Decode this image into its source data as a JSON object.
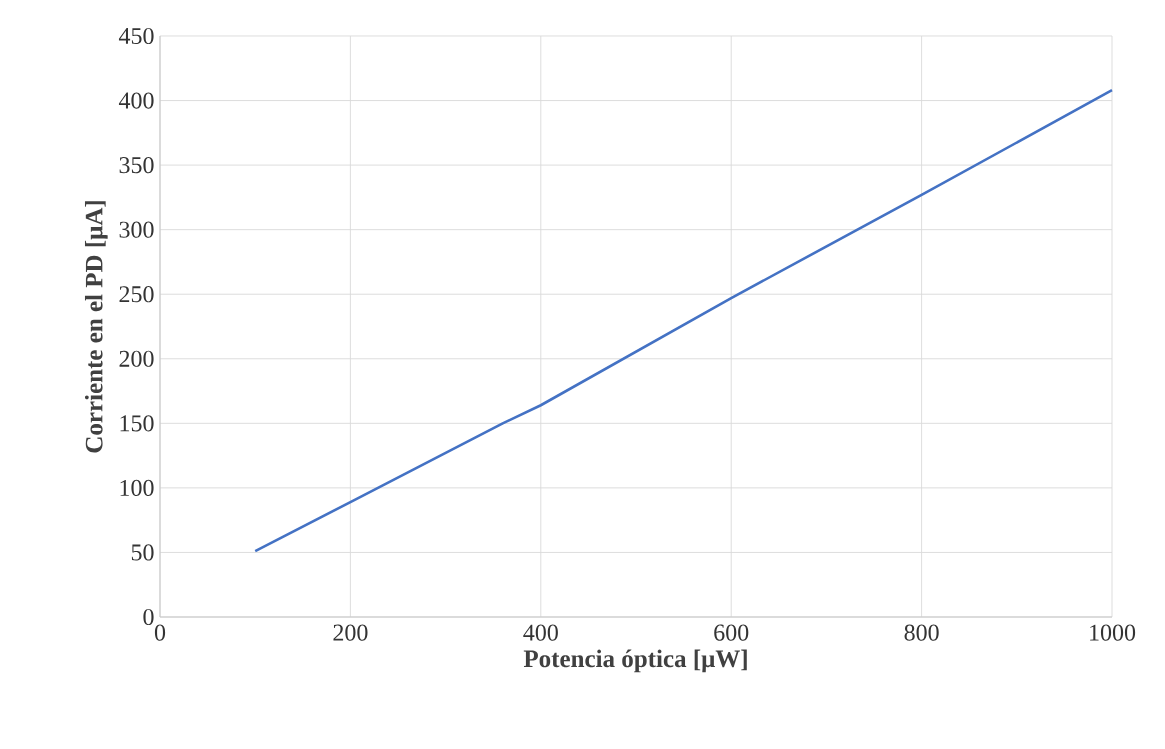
{
  "chart_data": {
    "type": "line",
    "xlabel": "Potencia óptica  [μW]",
    "ylabel": "Corriente en el PD [μA]",
    "x": [
      100,
      200,
      360,
      400,
      600,
      800,
      1000
    ],
    "series": [
      {
        "color": "#4472c4",
        "values": [
          51,
          89,
          150,
          164,
          247,
          327,
          408
        ]
      }
    ],
    "xlim": [
      0,
      1000
    ],
    "ylim": [
      0,
      450
    ],
    "xticks": [
      0,
      200,
      400,
      600,
      800,
      1000
    ],
    "yticks": [
      0,
      50,
      100,
      150,
      200,
      250,
      300,
      350,
      400,
      450
    ],
    "grid": true,
    "marker": "none",
    "line_style": "solid"
  }
}
